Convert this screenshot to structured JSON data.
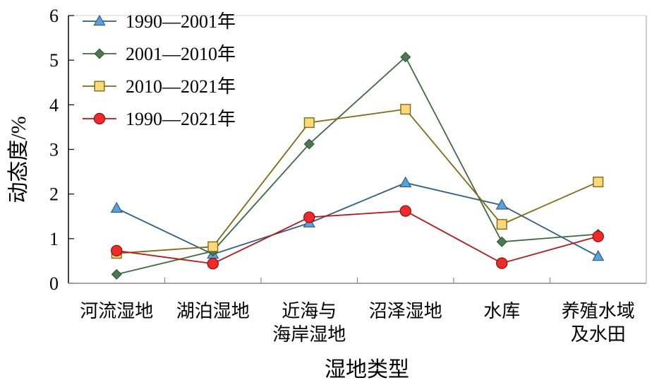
{
  "chart_data": {
    "type": "line",
    "title": "",
    "xlabel": "湿地类型",
    "ylabel": "动态度/%",
    "ylim": [
      0,
      6
    ],
    "yticks": [
      0,
      1,
      2,
      3,
      4,
      5,
      6
    ],
    "grid": false,
    "legend_position": "top-left",
    "categories": [
      [
        "河流湿地"
      ],
      [
        "湖泊湿地"
      ],
      [
        "近海与",
        "海岸湿地"
      ],
      [
        "沼泽湿地"
      ],
      [
        "水库"
      ],
      [
        "养殖水域",
        "及水田"
      ]
    ],
    "series": [
      {
        "name": "1990—2001年",
        "marker": "triangle",
        "line_color": "#2e5d87",
        "marker_fill": "#5aa0dc",
        "values": [
          1.68,
          0.65,
          1.35,
          2.25,
          1.75,
          0.6
        ]
      },
      {
        "name": "2001—2010年",
        "marker": "diamond",
        "line_color": "#3f6a3f",
        "marker_fill": "#4a7a50",
        "values": [
          0.2,
          0.72,
          3.12,
          5.07,
          0.93,
          1.1
        ]
      },
      {
        "name": "2010—2021年",
        "marker": "square",
        "line_color": "#806a14",
        "marker_fill": "#fbd97a",
        "values": [
          0.67,
          0.82,
          3.6,
          3.9,
          1.32,
          2.27
        ]
      },
      {
        "name": "1990—2021年",
        "marker": "circle",
        "line_color": "#b81818",
        "marker_fill": "#ee2a2a",
        "values": [
          0.73,
          0.44,
          1.48,
          1.62,
          0.45,
          1.05
        ]
      }
    ]
  }
}
